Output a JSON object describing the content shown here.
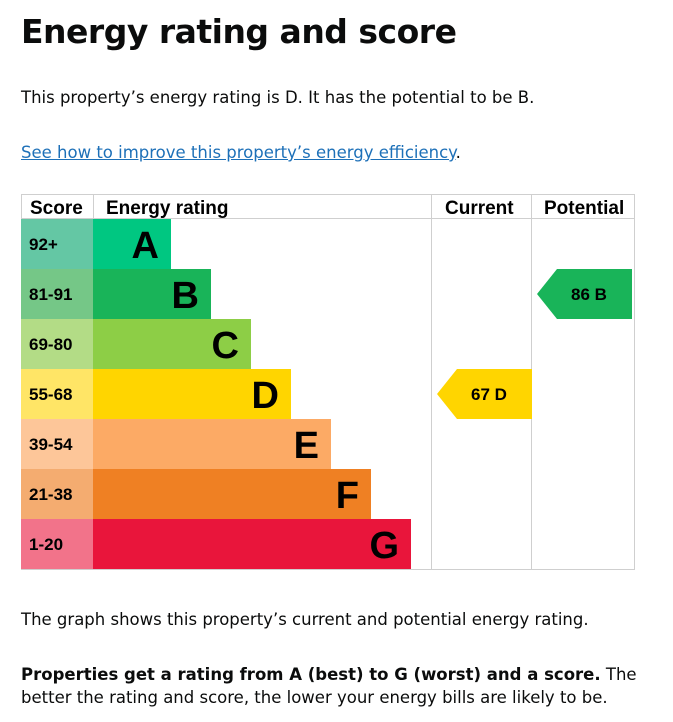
{
  "title": "Energy rating and score",
  "intro": "This property’s energy rating is D. It has the potential to be B.",
  "link": {
    "text": "See how to improve this property’s energy efficiency",
    "suffix": "."
  },
  "chart_data": {
    "type": "bar",
    "headers": {
      "score": "Score",
      "rating": "Energy rating",
      "current": "Current",
      "potential": "Potential"
    },
    "bands": [
      {
        "letter": "A",
        "range": "92+",
        "color": "#00c781",
        "score_color": "#64c7a4"
      },
      {
        "letter": "B",
        "range": "81-91",
        "color": "#19b459",
        "score_color": "#75c787"
      },
      {
        "letter": "C",
        "range": "69-80",
        "color": "#8dce46",
        "score_color": "#b3dc86"
      },
      {
        "letter": "D",
        "range": "55-68",
        "color": "#ffd500",
        "score_color": "#ffe566"
      },
      {
        "letter": "E",
        "range": "39-54",
        "color": "#fcaa65",
        "score_color": "#fdc699"
      },
      {
        "letter": "F",
        "range": "21-38",
        "color": "#ef8023",
        "score_color": "#f4ac70"
      },
      {
        "letter": "G",
        "range": "1-20",
        "color": "#e9153b",
        "score_color": "#f2738a"
      }
    ],
    "current": {
      "score": 67,
      "letter": "D",
      "label": "67  D"
    },
    "potential": {
      "score": 86,
      "letter": "B",
      "label": "86  B"
    }
  },
  "caption": "The graph shows this property’s current and potential energy rating.",
  "note": {
    "bold": "Properties get a rating from A (best) to G (worst) and a score.",
    "rest": " The better the rating and score, the lower your energy bills are likely to be."
  }
}
